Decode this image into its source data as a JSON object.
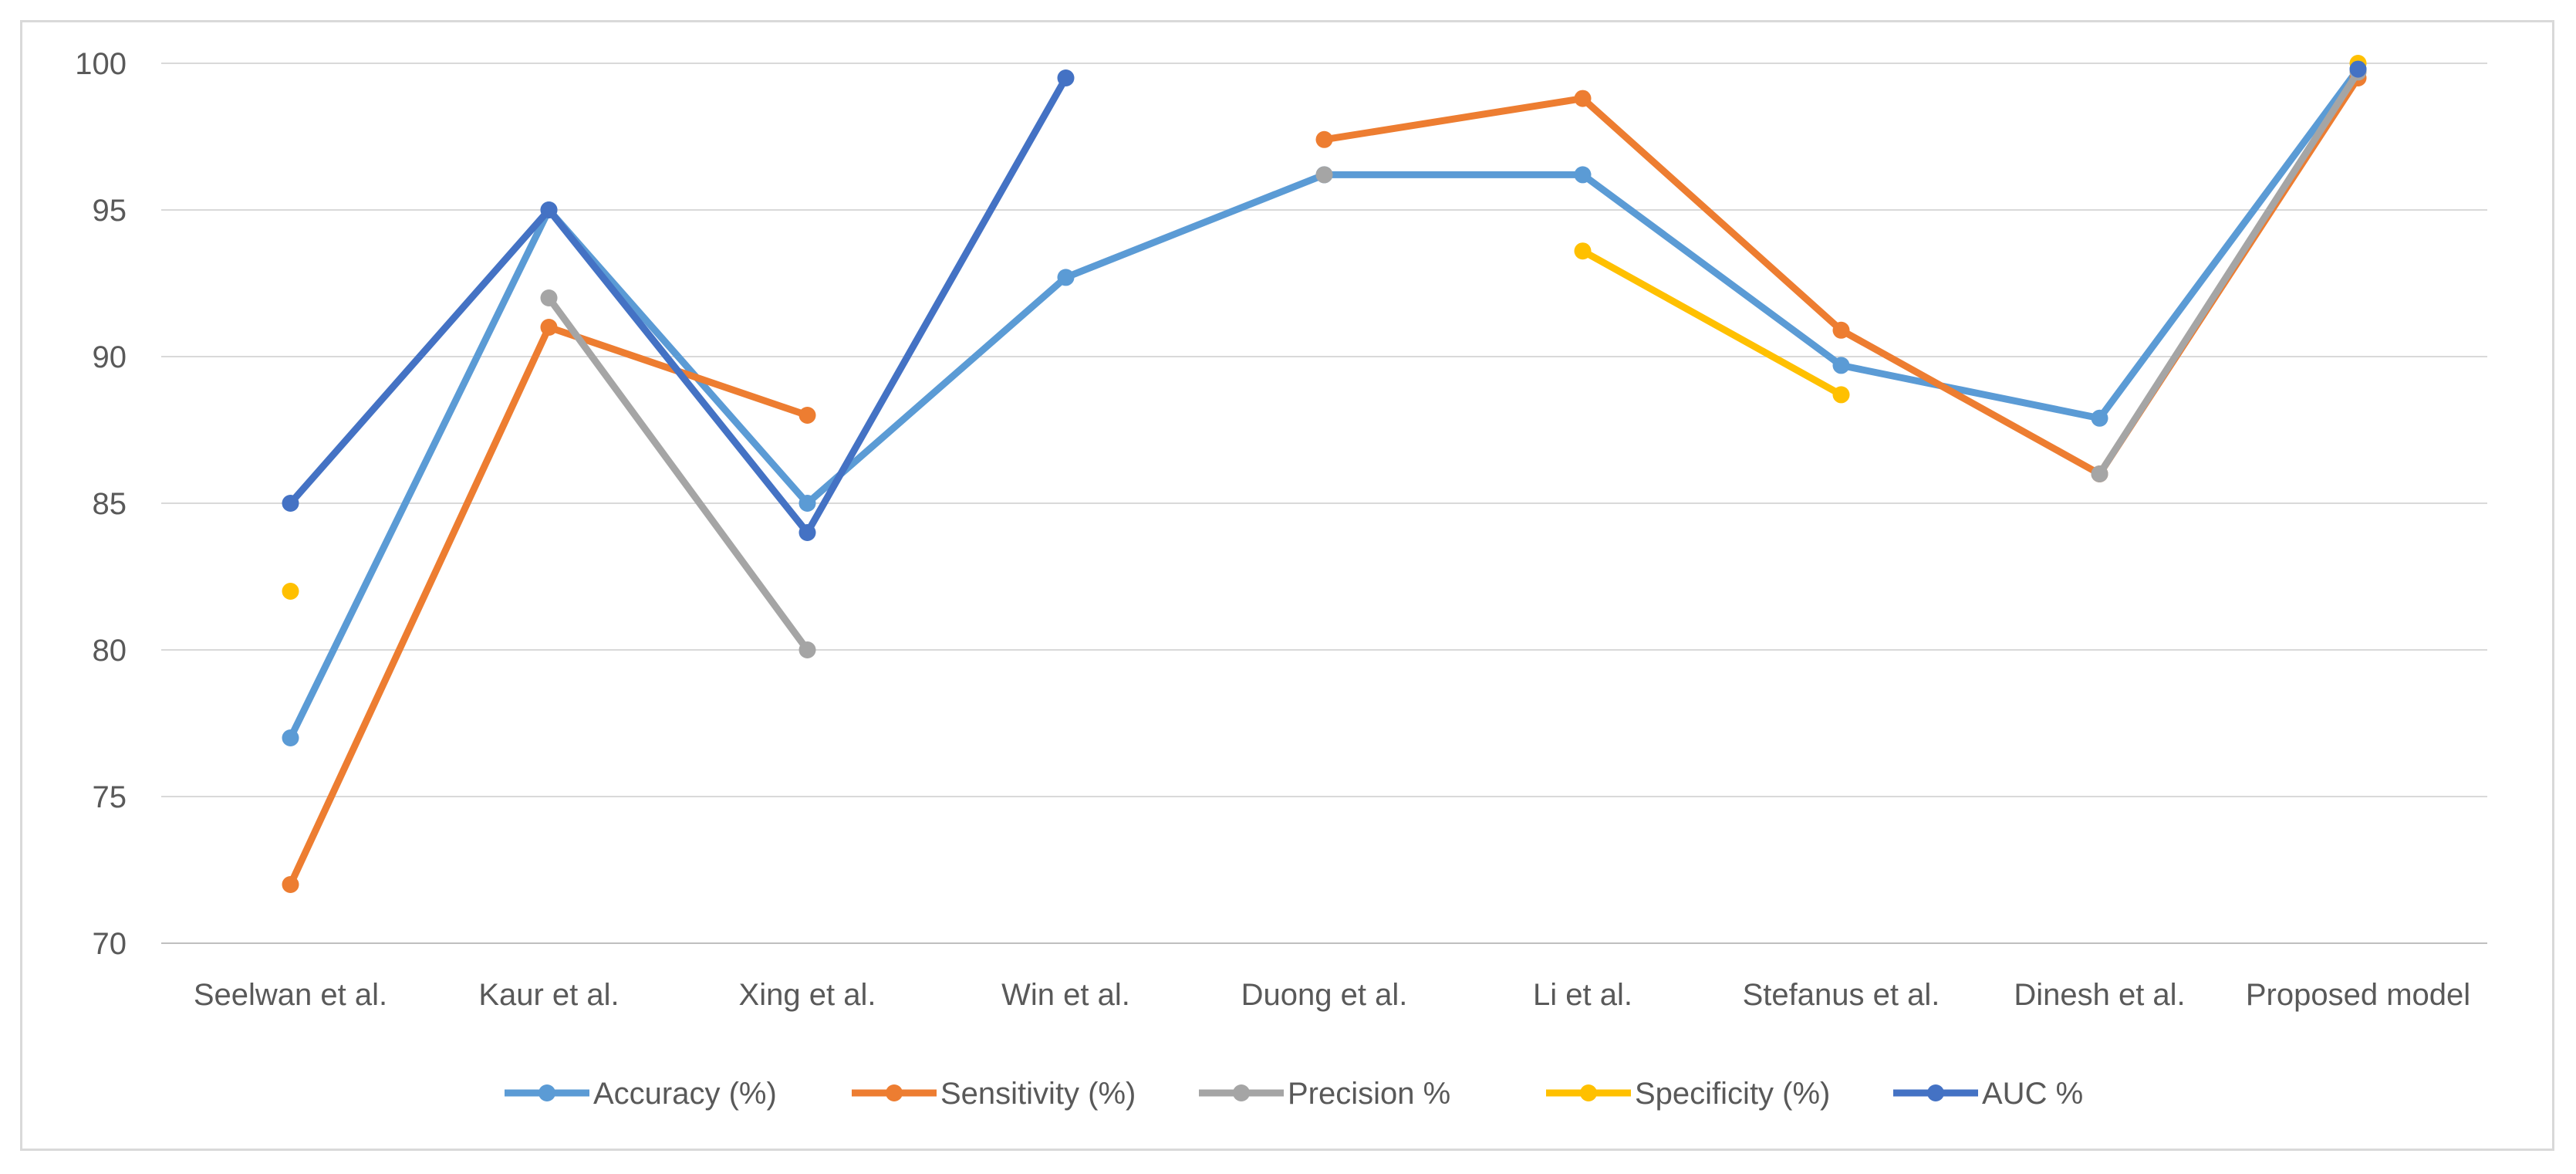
{
  "chart_data": {
    "type": "line",
    "title": "",
    "xlabel": "",
    "ylabel": "",
    "ylim": [
      70,
      100
    ],
    "yticks": [
      70,
      75,
      80,
      85,
      90,
      95,
      100
    ],
    "grid": true,
    "legend_position": "bottom",
    "categories": [
      "Seelwan et al.",
      "Kaur et al.",
      "Xing et al.",
      "Win et al.",
      "Duong et al.",
      "Li et al.",
      "Stefanus et al.",
      "Dinesh et al.",
      "Proposed model"
    ],
    "series": [
      {
        "name": "Accuracy (%)",
        "color": "#5b9bd5",
        "values": [
          77,
          95,
          85,
          92.7,
          96.2,
          96.2,
          89.7,
          87.9,
          99.8
        ]
      },
      {
        "name": "Sensitivity (%)",
        "color": "#ed7d31",
        "values": [
          72,
          91,
          88,
          null,
          97.4,
          98.8,
          90.9,
          86,
          99.5
        ]
      },
      {
        "name": "Precision %",
        "color": "#a5a5a5",
        "values": [
          null,
          92,
          80,
          null,
          96.2,
          null,
          null,
          86,
          99.7
        ]
      },
      {
        "name": "Specificity (%)",
        "color": "#ffc000",
        "values": [
          82,
          null,
          null,
          null,
          null,
          93.6,
          88.7,
          null,
          100
        ]
      },
      {
        "name": "AUC %",
        "color": "#4472c4",
        "values": [
          85,
          95,
          84,
          99.5,
          null,
          null,
          null,
          null,
          99.8
        ]
      }
    ]
  }
}
